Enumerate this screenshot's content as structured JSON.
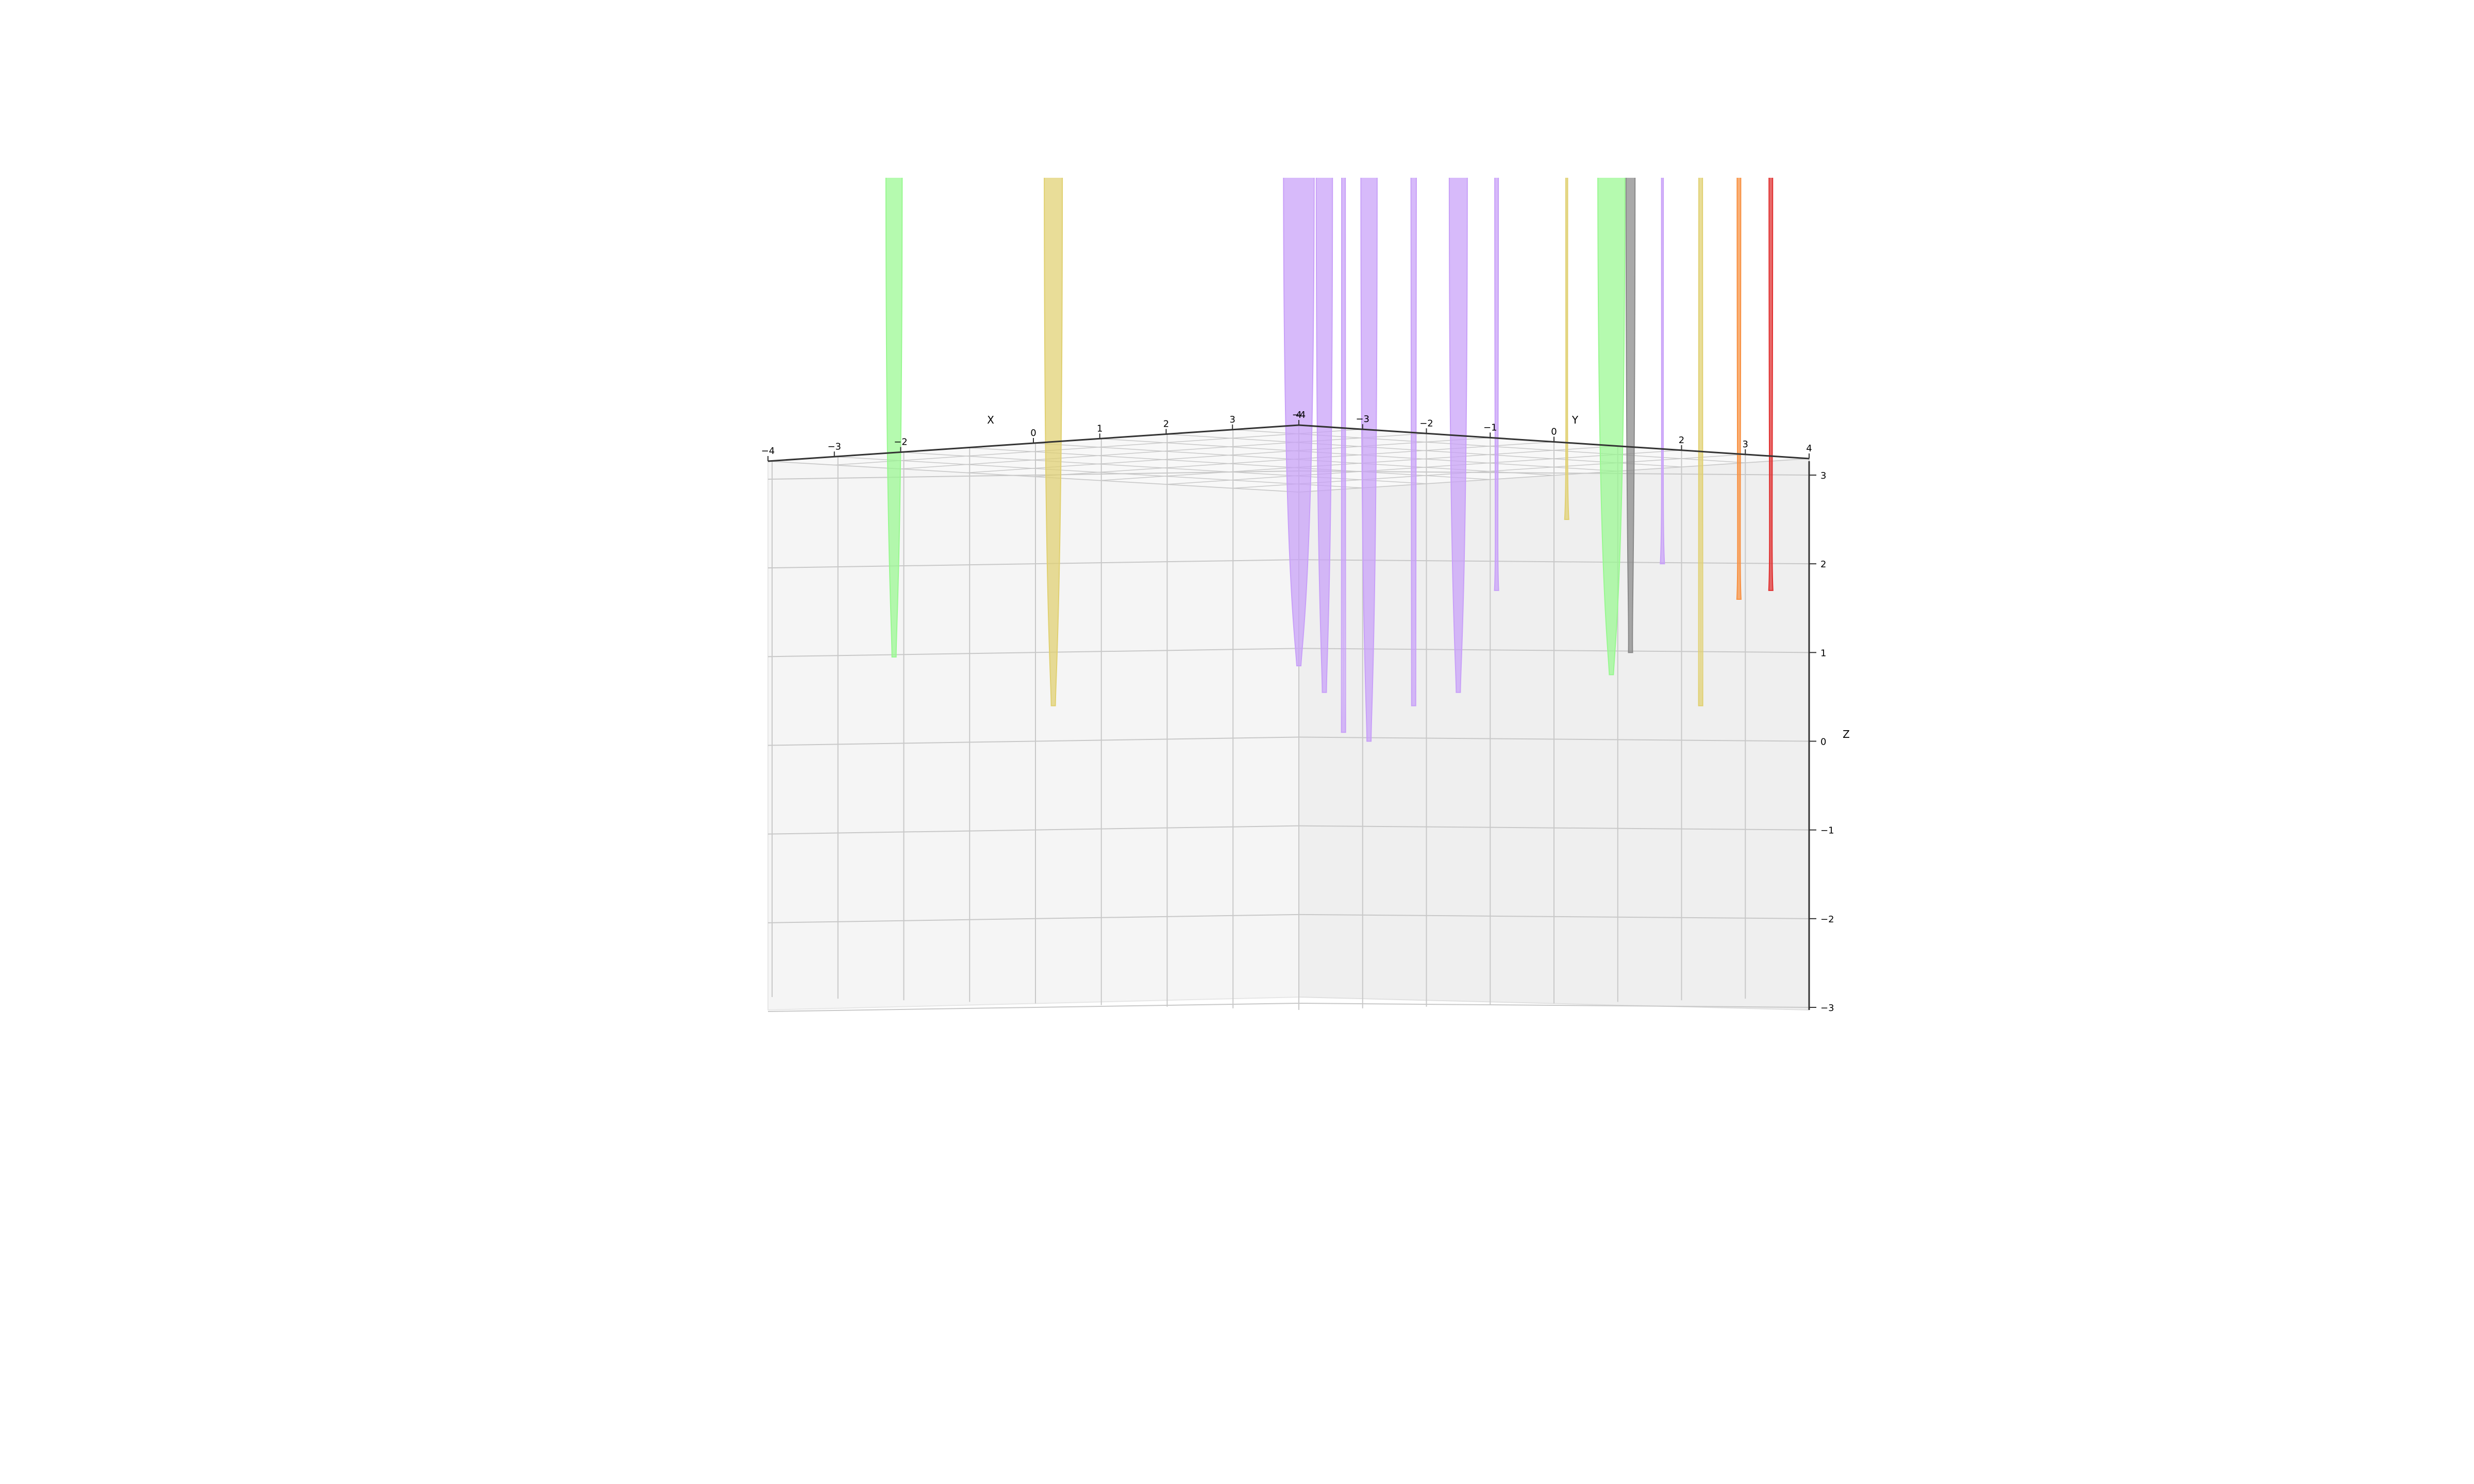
{
  "chart_data": {
    "type": "surface3d",
    "title": "",
    "xlabel": "X",
    "ylabel": "Y",
    "zlabel": "Z",
    "x_ticks": [
      "−4",
      "−3",
      "−2",
      "0",
      "1",
      "2",
      "3",
      "4"
    ],
    "y_ticks": [
      "−4",
      "−3",
      "−2",
      "−1",
      "0",
      "2",
      "3",
      "4"
    ],
    "z_ticks": [
      "−3",
      "−2",
      "−1",
      "0",
      "1",
      "2",
      "3"
    ],
    "xlim": [
      -4,
      4
    ],
    "ylim": [
      -4,
      4
    ],
    "zlim": [
      -3,
      3
    ],
    "grid": true,
    "pane_color": "#f2f2f2",
    "grid_color": "#c8c8c8",
    "spikes": [
      {
        "color": "#98f890",
        "x": -2.1,
        "y": -4,
        "z_min": 0.95,
        "width_at_top": 0.45
      },
      {
        "color": "#e0d070",
        "x": 0.3,
        "y": -4,
        "z_min": 0.4,
        "width_at_top": 0.5
      },
      {
        "color": "#c8a0f8",
        "x": 4,
        "y": -4,
        "z_min": 0.85,
        "width_at_top": 0.85
      },
      {
        "color": "#c8a0f8",
        "x": 4,
        "y": -3.6,
        "z_min": 0.55,
        "width_at_top": 0.45
      },
      {
        "color": "#c8a0f8",
        "x": 4,
        "y": -3.3,
        "z_min": 0.1,
        "width_at_top": 0.1
      },
      {
        "color": "#c8a0f8",
        "x": 4,
        "y": -2.9,
        "z_min": 0.0,
        "width_at_top": 0.45
      },
      {
        "color": "#c8a0f8",
        "x": 4,
        "y": -2.2,
        "z_min": 0.4,
        "width_at_top": 0.15
      },
      {
        "color": "#c8a0f8",
        "x": 4,
        "y": -1.5,
        "z_min": 0.55,
        "width_at_top": 0.5
      },
      {
        "color": "#c8a0f8",
        "x": 4,
        "y": -0.9,
        "z_min": 1.7,
        "width_at_top": 0.1
      },
      {
        "color": "#e0d070",
        "x": 4,
        "y": 0.2,
        "z_min": 2.5,
        "width_at_top": 0.05
      },
      {
        "color": "#98f890",
        "x": 4,
        "y": 0.9,
        "z_min": 0.75,
        "width_at_top": 0.75
      },
      {
        "color": "#888888",
        "x": 4,
        "y": 1.2,
        "z_min": 1.0,
        "width_at_top": 0.25
      },
      {
        "color": "#c8a0f8",
        "x": 4,
        "y": 1.7,
        "z_min": 2.0,
        "width_at_top": 0.05
      },
      {
        "color": "#e0d070",
        "x": 4,
        "y": 2.3,
        "z_min": 0.4,
        "width_at_top": 0.1
      },
      {
        "color": "#f89040",
        "x": 4,
        "y": 2.9,
        "z_min": 1.6,
        "width_at_top": 0.1
      },
      {
        "color": "#e03030",
        "x": 4,
        "y": 3.4,
        "z_min": 1.7,
        "width_at_top": 0.1
      }
    ]
  }
}
